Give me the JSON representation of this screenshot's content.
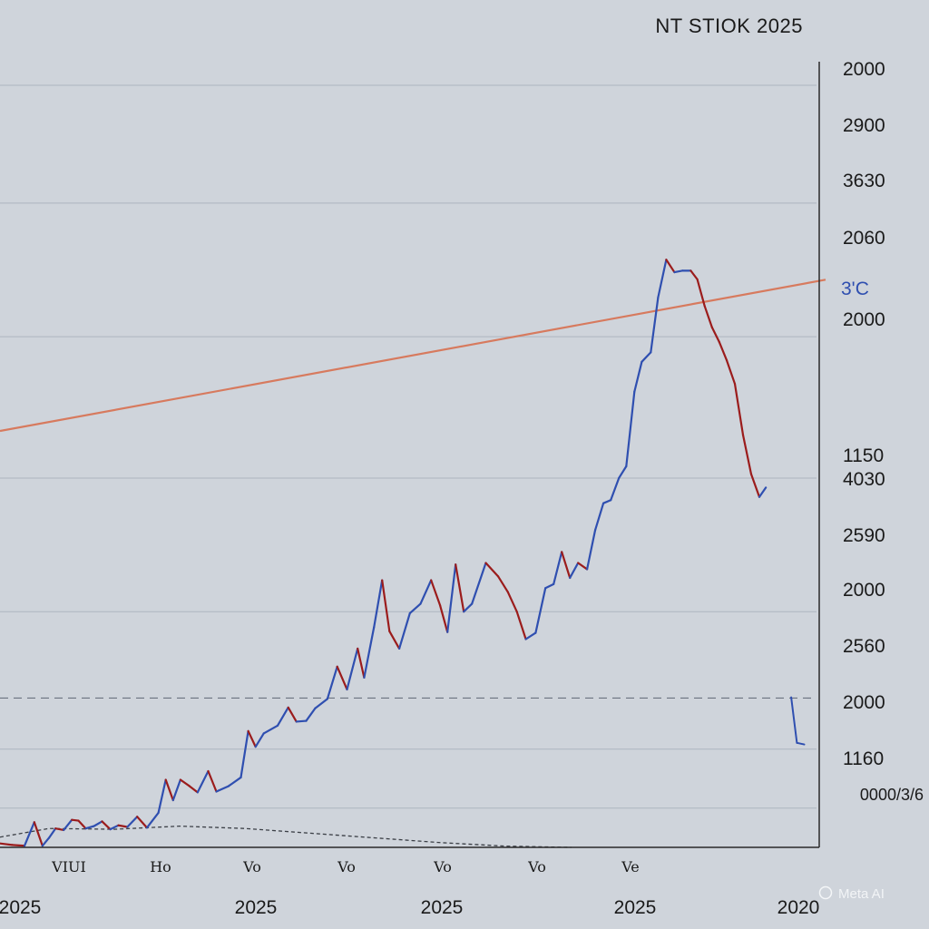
{
  "chart_data": {
    "type": "line",
    "title": "NT STIOK 2025",
    "ytick_labels": [
      "2000",
      "2900",
      "3630",
      "2060",
      "2000",
      "1150",
      "4030",
      "2590",
      "2000",
      "2560",
      "2000",
      "1160",
      "0000/3/6"
    ],
    "highlight_label": "3'C",
    "xtick_labels_small": [
      "VIUI",
      "Ho",
      "Vo",
      "Vo",
      "Vo",
      "Vo",
      "Ve"
    ],
    "xtick_labels_year": [
      "2025",
      "2025",
      "2025",
      "2025",
      "2020"
    ],
    "watermark": "Meta AI",
    "ylim": [
      0,
      100
    ],
    "xlim": [
      0,
      100
    ],
    "colors": {
      "background": "#cfd4db",
      "up": "#2f4fb0",
      "down": "#9b1c1c",
      "trend": "#d77a5e",
      "grid": "#aeb5bf",
      "axis": "#2a2a2a",
      "dashed": "#6b7280"
    },
    "grid_levels": [
      97,
      82,
      65,
      47,
      30,
      12.5,
      5
    ],
    "reference_dashed": 19,
    "trend_line": [
      [
        0,
        53
      ],
      [
        100,
        72
      ]
    ],
    "baseline_curve": [
      [
        0,
        1.3
      ],
      [
        6,
        2.4
      ],
      [
        14,
        2.3
      ],
      [
        22,
        2.7
      ],
      [
        30,
        2.4
      ],
      [
        38,
        1.8
      ],
      [
        46,
        1.2
      ],
      [
        54,
        0.6
      ],
      [
        62,
        0.15
      ],
      [
        70,
        0
      ]
    ],
    "price": [
      {
        "x": 0,
        "y": 0.5
      },
      {
        "x": 1.5,
        "y": 0.3
      },
      {
        "x": 3,
        "y": 0.2
      },
      {
        "x": 4.2,
        "y": 3.2
      },
      {
        "x": 5.2,
        "y": 0.2
      },
      {
        "x": 6,
        "y": 1.2
      },
      {
        "x": 6.8,
        "y": 2.4
      },
      {
        "x": 7.8,
        "y": 2.2
      },
      {
        "x": 8.8,
        "y": 3.5
      },
      {
        "x": 9.6,
        "y": 3.4
      },
      {
        "x": 10.5,
        "y": 2.4
      },
      {
        "x": 11.5,
        "y": 2.7
      },
      {
        "x": 12.5,
        "y": 3.3
      },
      {
        "x": 13.5,
        "y": 2.3
      },
      {
        "x": 14.5,
        "y": 2.8
      },
      {
        "x": 15.6,
        "y": 2.6
      },
      {
        "x": 16.8,
        "y": 3.9
      },
      {
        "x": 18,
        "y": 2.5
      },
      {
        "x": 19.4,
        "y": 4.4
      },
      {
        "x": 20.3,
        "y": 8.6
      },
      {
        "x": 21.2,
        "y": 6.0
      },
      {
        "x": 22.1,
        "y": 8.6
      },
      {
        "x": 23.2,
        "y": 7.8
      },
      {
        "x": 24.2,
        "y": 7.0
      },
      {
        "x": 25.5,
        "y": 9.7
      },
      {
        "x": 26.5,
        "y": 7.1
      },
      {
        "x": 28,
        "y": 7.8
      },
      {
        "x": 29.5,
        "y": 8.9
      },
      {
        "x": 30.4,
        "y": 14.8
      },
      {
        "x": 31.3,
        "y": 12.8
      },
      {
        "x": 32.3,
        "y": 14.5
      },
      {
        "x": 34,
        "y": 15.5
      },
      {
        "x": 35.3,
        "y": 17.8
      },
      {
        "x": 36.3,
        "y": 16.0
      },
      {
        "x": 37.5,
        "y": 16.1
      },
      {
        "x": 38.6,
        "y": 17.7
      },
      {
        "x": 40.1,
        "y": 18.9
      },
      {
        "x": 41.3,
        "y": 23.0
      },
      {
        "x": 42.5,
        "y": 20.1
      },
      {
        "x": 43.8,
        "y": 25.3
      },
      {
        "x": 44.6,
        "y": 21.6
      },
      {
        "x": 45.8,
        "y": 28.0
      },
      {
        "x": 46.8,
        "y": 34.0
      },
      {
        "x": 47.7,
        "y": 27.5
      },
      {
        "x": 48.9,
        "y": 25.3
      },
      {
        "x": 50.2,
        "y": 29.8
      },
      {
        "x": 51.5,
        "y": 31.0
      },
      {
        "x": 52.8,
        "y": 34.0
      },
      {
        "x": 53.9,
        "y": 30.8
      },
      {
        "x": 54.8,
        "y": 27.4
      },
      {
        "x": 55.8,
        "y": 36.0
      },
      {
        "x": 56.8,
        "y": 30.0
      },
      {
        "x": 57.8,
        "y": 31.0
      },
      {
        "x": 59.5,
        "y": 36.2
      },
      {
        "x": 61.0,
        "y": 34.5
      },
      {
        "x": 62.2,
        "y": 32.5
      },
      {
        "x": 63.3,
        "y": 30.0
      },
      {
        "x": 64.4,
        "y": 26.5
      },
      {
        "x": 65.6,
        "y": 27.3
      },
      {
        "x": 66.8,
        "y": 33.0
      },
      {
        "x": 67.8,
        "y": 33.5
      },
      {
        "x": 68.8,
        "y": 37.6
      },
      {
        "x": 69.8,
        "y": 34.3
      },
      {
        "x": 70.8,
        "y": 36.2
      },
      {
        "x": 71.9,
        "y": 35.4
      },
      {
        "x": 72.9,
        "y": 40.4
      },
      {
        "x": 73.9,
        "y": 43.8
      },
      {
        "x": 74.8,
        "y": 44.2
      },
      {
        "x": 75.8,
        "y": 47.0
      },
      {
        "x": 76.7,
        "y": 48.5
      },
      {
        "x": 77.7,
        "y": 58.0
      },
      {
        "x": 78.6,
        "y": 61.8
      },
      {
        "x": 79.7,
        "y": 63.0
      },
      {
        "x": 80.6,
        "y": 70.0
      },
      {
        "x": 81.6,
        "y": 74.8
      },
      {
        "x": 82.6,
        "y": 73.2
      },
      {
        "x": 83.6,
        "y": 73.4
      },
      {
        "x": 84.6,
        "y": 73.4
      },
      {
        "x": 85.4,
        "y": 72.3
      },
      {
        "x": 86.3,
        "y": 68.9
      },
      {
        "x": 87.2,
        "y": 66.2
      },
      {
        "x": 88.1,
        "y": 64.3
      },
      {
        "x": 89.0,
        "y": 62.0
      },
      {
        "x": 90.0,
        "y": 59.0
      },
      {
        "x": 91.0,
        "y": 52.5
      },
      {
        "x": 92.0,
        "y": 47.5
      },
      {
        "x": 93.0,
        "y": 44.6
      },
      {
        "x": 93.8,
        "y": 45.8
      }
    ],
    "tail": [
      {
        "x": 96.9,
        "y": 19.1
      },
      {
        "x": 97.6,
        "y": 13.3
      },
      {
        "x": 98.5,
        "y": 13.1
      }
    ]
  }
}
